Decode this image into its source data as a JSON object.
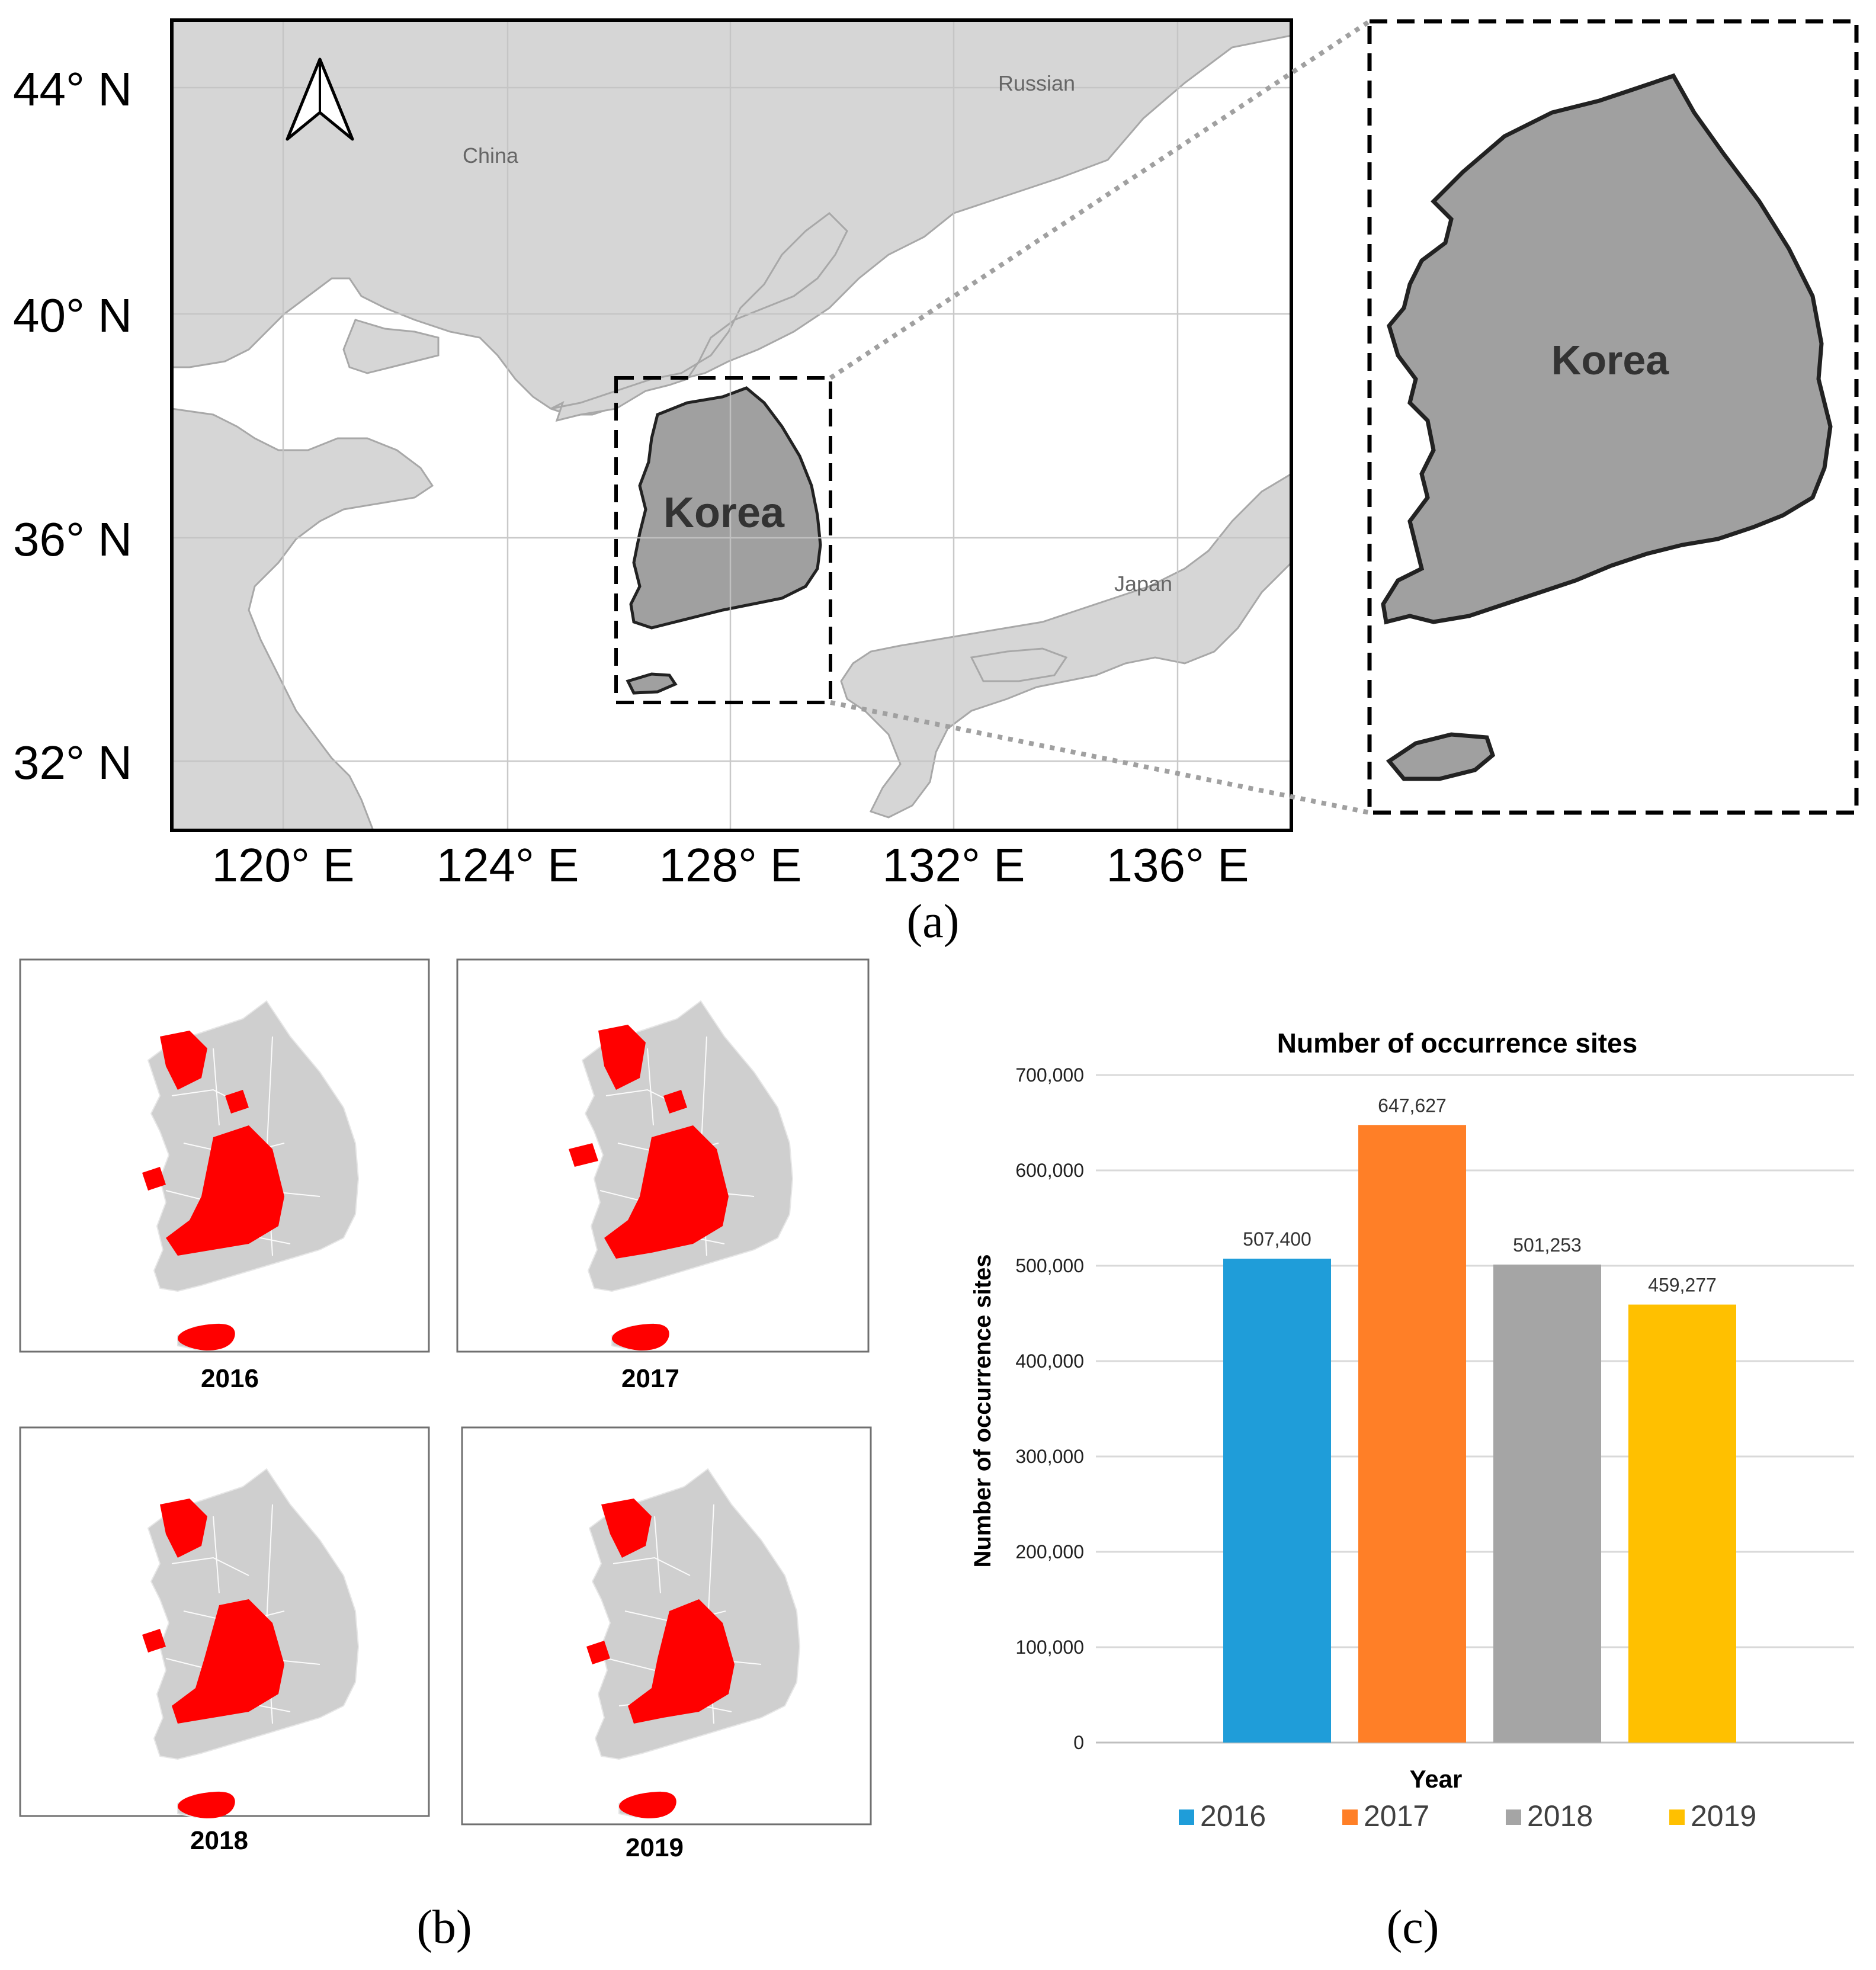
{
  "panel_a": {
    "lat_labels": [
      "44° N",
      "40° N",
      "36° N",
      "32° N"
    ],
    "lon_labels": [
      "120° E",
      "124° E",
      "128° E",
      "132° E",
      "136° E"
    ],
    "place_labels": {
      "china": "China",
      "russian": "Russian",
      "japan": "Japan",
      "korea": "Korea"
    },
    "inset_label": "Korea",
    "caption": "(a)"
  },
  "panel_b": {
    "years": [
      "2016",
      "2017",
      "2018",
      "2019"
    ],
    "caption": "(b)"
  },
  "panel_c": {
    "caption": "(c)"
  },
  "colors": {
    "land": "#d6d6d6",
    "korea": "#a0a0a0",
    "occurrence": "#ff0000"
  },
  "chart_data": {
    "type": "bar",
    "title": "Number of  occurrence  sites",
    "xlabel": "Year",
    "ylabel": "Number of  occurrence  sites",
    "ylim": [
      0,
      700000
    ],
    "yticks": [
      "0",
      "100,000",
      "200,000",
      "300,000",
      "400,000",
      "500,000",
      "600,000",
      "700,000"
    ],
    "categories": [
      "2016",
      "2017",
      "2018",
      "2019"
    ],
    "values": [
      507400,
      647627,
      501253,
      459277
    ],
    "value_labels": [
      "507,400",
      "647,627",
      "501,253",
      "459,277"
    ],
    "bar_colors": [
      "#1f9dd9",
      "#ff7f27",
      "#a5a5a5",
      "#ffc000"
    ],
    "legend": [
      "2016",
      "2017",
      "2018",
      "2019"
    ],
    "legend_position": "bottom",
    "grid": true
  }
}
